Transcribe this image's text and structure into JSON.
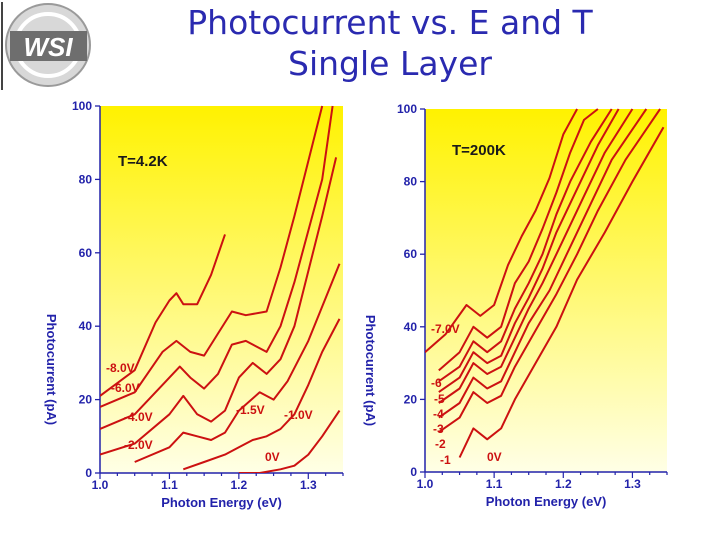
{
  "slide": {
    "title_line1": "Photocurrent vs. E and T",
    "title_line2": "Single Layer",
    "logo_text": "WSI"
  },
  "colors": {
    "title": "#2a2ab0",
    "axis_text": "#2222aa",
    "curve": "#cc1111",
    "label_text": "#cc1111",
    "panel_top": "#fff200",
    "panel_bottom": "#ffffe6"
  },
  "chart_data": [
    {
      "type": "line",
      "panel": "left",
      "title": "T=4.2K",
      "xlabel": "Photon Energy (eV)",
      "ylabel": "Photocurrent (pA)",
      "xlim": [
        1.0,
        1.35
      ],
      "ylim": [
        0,
        100
      ],
      "xticks": [
        "1.0",
        "1.1",
        "1.2",
        "1.3"
      ],
      "yticks": [
        "0",
        "20",
        "40",
        "60",
        "80",
        "100"
      ],
      "series": [
        {
          "name": "-8.0V",
          "x": [
            1.0,
            1.05,
            1.08,
            1.1,
            1.11,
            1.12,
            1.14,
            1.16,
            1.18
          ],
          "y": [
            21,
            28,
            41,
            47,
            49,
            46,
            46,
            54,
            65
          ]
        },
        {
          "name": "-6.0V",
          "x": [
            1.0,
            1.05,
            1.09,
            1.11,
            1.13,
            1.15,
            1.17,
            1.19,
            1.21,
            1.24,
            1.26,
            1.28,
            1.3,
            1.32
          ],
          "y": [
            18,
            22,
            33,
            36,
            33,
            32,
            38,
            44,
            43,
            44,
            56,
            70,
            85,
            100
          ]
        },
        {
          "name": "-4.0V",
          "x": [
            1.0,
            1.05,
            1.1,
            1.115,
            1.13,
            1.15,
            1.17,
            1.19,
            1.21,
            1.24,
            1.26,
            1.28,
            1.3,
            1.32,
            1.335
          ],
          "y": [
            12,
            16,
            26,
            29,
            26,
            23,
            27,
            35,
            36,
            33,
            40,
            52,
            66,
            80,
            100
          ]
        },
        {
          "name": "-2.0V",
          "x": [
            1.0,
            1.05,
            1.1,
            1.12,
            1.14,
            1.16,
            1.18,
            1.2,
            1.22,
            1.24,
            1.26,
            1.28,
            1.3,
            1.32,
            1.34
          ],
          "y": [
            5,
            8,
            16,
            21,
            16,
            14,
            17,
            26,
            30,
            27,
            31,
            40,
            55,
            70,
            86
          ]
        },
        {
          "name": "-1.5V",
          "x": [
            1.05,
            1.1,
            1.12,
            1.14,
            1.16,
            1.18,
            1.2,
            1.23,
            1.25,
            1.27,
            1.3,
            1.33,
            1.345
          ],
          "y": [
            3,
            7,
            11,
            10,
            9,
            11,
            17,
            22,
            20,
            25,
            36,
            50,
            57
          ]
        },
        {
          "name": "-1.0V",
          "x": [
            1.12,
            1.15,
            1.18,
            1.2,
            1.22,
            1.24,
            1.26,
            1.28,
            1.3,
            1.32,
            1.345
          ],
          "y": [
            1,
            3,
            5,
            7,
            9,
            10,
            12,
            16,
            24,
            33,
            42
          ]
        },
        {
          "name": "0V",
          "x": [
            1.2,
            1.23,
            1.26,
            1.28,
            1.3,
            1.32,
            1.345
          ],
          "y": [
            0,
            0,
            1,
            2,
            5,
            10,
            17
          ]
        }
      ]
    },
    {
      "type": "line",
      "panel": "right",
      "title": "T=200K",
      "xlabel": "Photon Energy (eV)",
      "ylabel": "Photocurrent (pA)",
      "xlim": [
        1.0,
        1.35
      ],
      "ylim": [
        0,
        100
      ],
      "xticks": [
        "1.0",
        "1.1",
        "1.2",
        "1.3"
      ],
      "yticks": [
        "0",
        "20",
        "40",
        "60",
        "80",
        "100"
      ],
      "series": [
        {
          "name": "-7.0V",
          "x": [
            1.0,
            1.03,
            1.06,
            1.08,
            1.1,
            1.12,
            1.14,
            1.16,
            1.18,
            1.2,
            1.22
          ],
          "y": [
            33,
            38,
            46,
            43,
            46,
            57,
            65,
            72,
            81,
            93,
            100
          ]
        },
        {
          "name": "-6",
          "x": [
            1.02,
            1.05,
            1.07,
            1.09,
            1.11,
            1.13,
            1.15,
            1.17,
            1.19,
            1.21,
            1.23,
            1.25
          ],
          "y": [
            28,
            33,
            40,
            37,
            40,
            52,
            58,
            67,
            77,
            88,
            97,
            100
          ]
        },
        {
          "name": "-5",
          "x": [
            1.02,
            1.05,
            1.07,
            1.09,
            1.11,
            1.13,
            1.15,
            1.17,
            1.19,
            1.21,
            1.24,
            1.27
          ],
          "y": [
            25,
            29,
            36,
            33,
            36,
            45,
            52,
            60,
            71,
            80,
            91,
            100
          ]
        },
        {
          "name": "-4",
          "x": [
            1.02,
            1.05,
            1.07,
            1.09,
            1.11,
            1.13,
            1.15,
            1.17,
            1.19,
            1.22,
            1.25,
            1.28
          ],
          "y": [
            22,
            26,
            33,
            30,
            32,
            41,
            48,
            56,
            66,
            78,
            90,
            100
          ]
        },
        {
          "name": "-3",
          "x": [
            1.02,
            1.05,
            1.07,
            1.09,
            1.11,
            1.13,
            1.15,
            1.17,
            1.2,
            1.23,
            1.26,
            1.3
          ],
          "y": [
            19,
            23,
            30,
            27,
            29,
            37,
            45,
            52,
            64,
            76,
            88,
            100
          ]
        },
        {
          "name": "-2",
          "x": [
            1.02,
            1.05,
            1.07,
            1.09,
            1.11,
            1.13,
            1.15,
            1.18,
            1.21,
            1.24,
            1.27,
            1.32
          ],
          "y": [
            15,
            19,
            26,
            23,
            25,
            33,
            41,
            50,
            62,
            74,
            86,
            100
          ]
        },
        {
          "name": "-1",
          "x": [
            1.02,
            1.05,
            1.07,
            1.09,
            1.11,
            1.13,
            1.16,
            1.19,
            1.22,
            1.25,
            1.29,
            1.34
          ],
          "y": [
            11,
            15,
            22,
            19,
            21,
            29,
            39,
            49,
            60,
            72,
            86,
            100
          ]
        },
        {
          "name": "0V",
          "x": [
            1.05,
            1.07,
            1.09,
            1.11,
            1.13,
            1.16,
            1.19,
            1.22,
            1.26,
            1.3,
            1.345
          ],
          "y": [
            4,
            12,
            9,
            12,
            20,
            30,
            40,
            53,
            66,
            80,
            95
          ]
        }
      ]
    }
  ]
}
